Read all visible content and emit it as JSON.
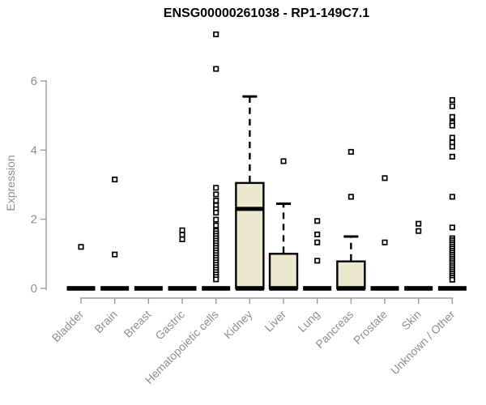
{
  "chart_data": {
    "type": "boxplot",
    "title": "ENSG00000261038 - RP1-149C7.1",
    "ylabel": "Expression",
    "xlabel": "",
    "yticks": [
      0,
      2,
      4,
      6
    ],
    "ylim": [
      0,
      7.6
    ],
    "grid": false,
    "legend": "none",
    "colors": {
      "box_fill": "#ede8d0",
      "box_stroke": "#000000",
      "median": "#000000",
      "whisker": "#000000",
      "outlier_stroke": "#000000",
      "outlier_fill": "#ffffff",
      "axis": "#999999",
      "tick_text": "#8f8f8f",
      "title_text": "#000000",
      "background": "#ffffff"
    },
    "categories": [
      "Bladder",
      "Brain",
      "Breast",
      "Gastric",
      "Hematopoietic cells",
      "Kidney",
      "Liver",
      "Lung",
      "Pancreas",
      "Prostate",
      "Skin",
      "Unknown / Other"
    ],
    "series": [
      {
        "name": "Bladder",
        "q1": 0,
        "median": 0,
        "q3": 0,
        "whisker_low": 0,
        "whisker_high": 0,
        "outliers": [
          1.2
        ]
      },
      {
        "name": "Brain",
        "q1": 0,
        "median": 0,
        "q3": 0,
        "whisker_low": 0,
        "whisker_high": 0,
        "outliers": [
          3.15,
          0.98
        ]
      },
      {
        "name": "Breast",
        "q1": 0,
        "median": 0,
        "q3": 0,
        "whisker_low": 0,
        "whisker_high": 0,
        "outliers": []
      },
      {
        "name": "Gastric",
        "q1": 0,
        "median": 0,
        "q3": 0,
        "whisker_low": 0,
        "whisker_high": 0,
        "outliers": [
          1.68,
          1.55,
          1.42
        ]
      },
      {
        "name": "Hematopoietic cells",
        "q1": 0,
        "median": 0,
        "q3": 0,
        "whisker_low": 0,
        "whisker_high": 0,
        "outliers": [
          7.35,
          6.35,
          2.91,
          2.72,
          2.54,
          2.4,
          2.29,
          2.19,
          1.99,
          1.82,
          1.66,
          1.59,
          1.52,
          1.45,
          1.38,
          1.31,
          1.24,
          1.17,
          1.1,
          1.03,
          0.96,
          0.89,
          0.82,
          0.75,
          0.68,
          0.61,
          0.54,
          0.47,
          0.4,
          0.33,
          0.26
        ]
      },
      {
        "name": "Kidney",
        "q1": 0,
        "median": 2.3,
        "q3": 3.05,
        "whisker_low": 0,
        "whisker_high": 5.55,
        "outliers": []
      },
      {
        "name": "Liver",
        "q1": 0,
        "median": 0,
        "q3": 1.0,
        "whisker_low": 0,
        "whisker_high": 2.45,
        "outliers": [
          3.68
        ]
      },
      {
        "name": "Lung",
        "q1": 0,
        "median": 0,
        "q3": 0,
        "whisker_low": 0,
        "whisker_high": 0,
        "outliers": [
          1.95,
          1.56,
          1.33,
          0.8
        ]
      },
      {
        "name": "Pancreas",
        "q1": 0,
        "median": 0,
        "q3": 0.78,
        "whisker_low": 0,
        "whisker_high": 1.5,
        "outliers": [
          3.95,
          2.65
        ]
      },
      {
        "name": "Prostate",
        "q1": 0,
        "median": 0,
        "q3": 0,
        "whisker_low": 0,
        "whisker_high": 0,
        "outliers": [
          3.19,
          1.33
        ]
      },
      {
        "name": "Skin",
        "q1": 0,
        "median": 0,
        "q3": 0,
        "whisker_low": 0,
        "whisker_high": 0,
        "outliers": [
          1.87,
          1.66
        ]
      },
      {
        "name": "Unknown / Other",
        "q1": 0,
        "median": 0,
        "q3": 0,
        "whisker_low": 0,
        "whisker_high": 0,
        "outliers": [
          5.45,
          5.27,
          4.96,
          4.79,
          4.71,
          4.36,
          4.22,
          4.1,
          3.81,
          2.65,
          1.76,
          1.45,
          1.39,
          1.33,
          1.27,
          1.21,
          1.15,
          1.09,
          1.03,
          0.97,
          0.91,
          0.85,
          0.79,
          0.73,
          0.67,
          0.61,
          0.55,
          0.49,
          0.43,
          0.37,
          0.31,
          0.25
        ]
      }
    ]
  }
}
